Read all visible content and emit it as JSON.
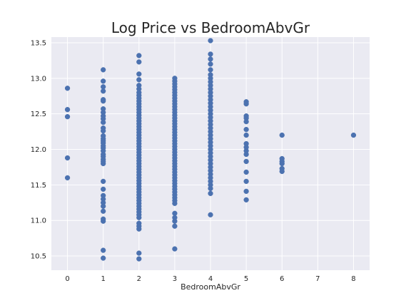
{
  "chart_data": {
    "type": "scatter",
    "title": "Log Price vs BedroomAbvGr",
    "xlabel": "BedroomAbvGr",
    "ylabel": "",
    "xlim": [
      -0.45,
      8.45
    ],
    "ylim": [
      10.3,
      13.58
    ],
    "xticks": [
      0,
      1,
      2,
      3,
      4,
      5,
      6,
      7,
      8
    ],
    "yticks": [
      10.5,
      11.0,
      11.5,
      12.0,
      12.5,
      13.0,
      13.5
    ],
    "ytick_labels": [
      "10.5",
      "11.0",
      "11.5",
      "12.0",
      "12.5",
      "13.0",
      "13.5"
    ],
    "grid": true,
    "legend": "none",
    "marker_color": "#4c72b0",
    "plot_background": "#eaeaf2",
    "points": [
      {
        "x": 0,
        "y": [
          12.86,
          12.56,
          12.46,
          11.88,
          11.6
        ]
      },
      {
        "x": 1,
        "y": [
          13.12,
          12.96,
          12.88,
          12.82,
          12.7,
          12.68,
          12.57,
          12.52,
          12.47,
          12.43,
          12.38,
          12.3,
          12.26,
          12.19,
          12.15,
          12.12,
          12.09,
          12.05,
          12.02,
          11.98,
          11.93,
          11.9,
          11.86,
          11.83,
          11.8,
          11.55,
          11.44,
          11.35,
          11.3,
          11.25,
          11.2,
          11.13,
          11.02,
          10.99,
          10.58,
          10.47
        ]
      },
      {
        "x": 2,
        "y": [
          13.32,
          13.23,
          13.06,
          12.98,
          12.9,
          12.85,
          12.8,
          12.76,
          12.72,
          12.68,
          12.64,
          12.6,
          12.56,
          12.52,
          12.48,
          12.44,
          12.4,
          12.36,
          12.32,
          12.28,
          12.24,
          12.2,
          12.16,
          12.12,
          12.08,
          12.04,
          12.0,
          11.96,
          11.92,
          11.88,
          11.84,
          11.8,
          11.76,
          11.72,
          11.68,
          11.64,
          11.6,
          11.56,
          11.52,
          11.48,
          11.44,
          11.4,
          11.36,
          11.32,
          11.28,
          11.24,
          11.2,
          11.16,
          11.12,
          11.08,
          11.04,
          10.96,
          10.92,
          10.88,
          10.54,
          10.46
        ]
      },
      {
        "x": 3,
        "y": [
          13.0,
          12.96,
          12.92,
          12.88,
          12.84,
          12.8,
          12.76,
          12.72,
          12.68,
          12.64,
          12.6,
          12.56,
          12.52,
          12.48,
          12.44,
          12.4,
          12.36,
          12.32,
          12.28,
          12.24,
          12.2,
          12.16,
          12.12,
          12.08,
          12.04,
          12.0,
          11.96,
          11.92,
          11.88,
          11.84,
          11.8,
          11.76,
          11.72,
          11.68,
          11.64,
          11.6,
          11.56,
          11.52,
          11.48,
          11.44,
          11.4,
          11.36,
          11.32,
          11.28,
          11.24,
          11.1,
          11.04,
          10.99,
          10.92,
          10.6
        ]
      },
      {
        "x": 4,
        "y": [
          13.53,
          13.34,
          13.27,
          13.2,
          13.12,
          13.05,
          13.0,
          12.95,
          12.9,
          12.85,
          12.8,
          12.75,
          12.7,
          12.65,
          12.6,
          12.55,
          12.5,
          12.45,
          12.4,
          12.35,
          12.3,
          12.25,
          12.2,
          12.15,
          12.1,
          12.05,
          12.0,
          11.95,
          11.9,
          11.85,
          11.8,
          11.75,
          11.7,
          11.65,
          11.6,
          11.55,
          11.5,
          11.45,
          11.38,
          11.08
        ]
      },
      {
        "x": 5,
        "y": [
          12.67,
          12.64,
          12.47,
          12.44,
          12.39,
          12.28,
          12.2,
          12.08,
          12.03,
          11.98,
          11.93,
          11.83,
          11.68,
          11.55,
          11.41,
          11.29
        ]
      },
      {
        "x": 6,
        "y": [
          12.2,
          11.87,
          11.83,
          11.8,
          11.73,
          11.69
        ]
      },
      {
        "x": 8,
        "y": [
          12.2
        ]
      }
    ]
  }
}
